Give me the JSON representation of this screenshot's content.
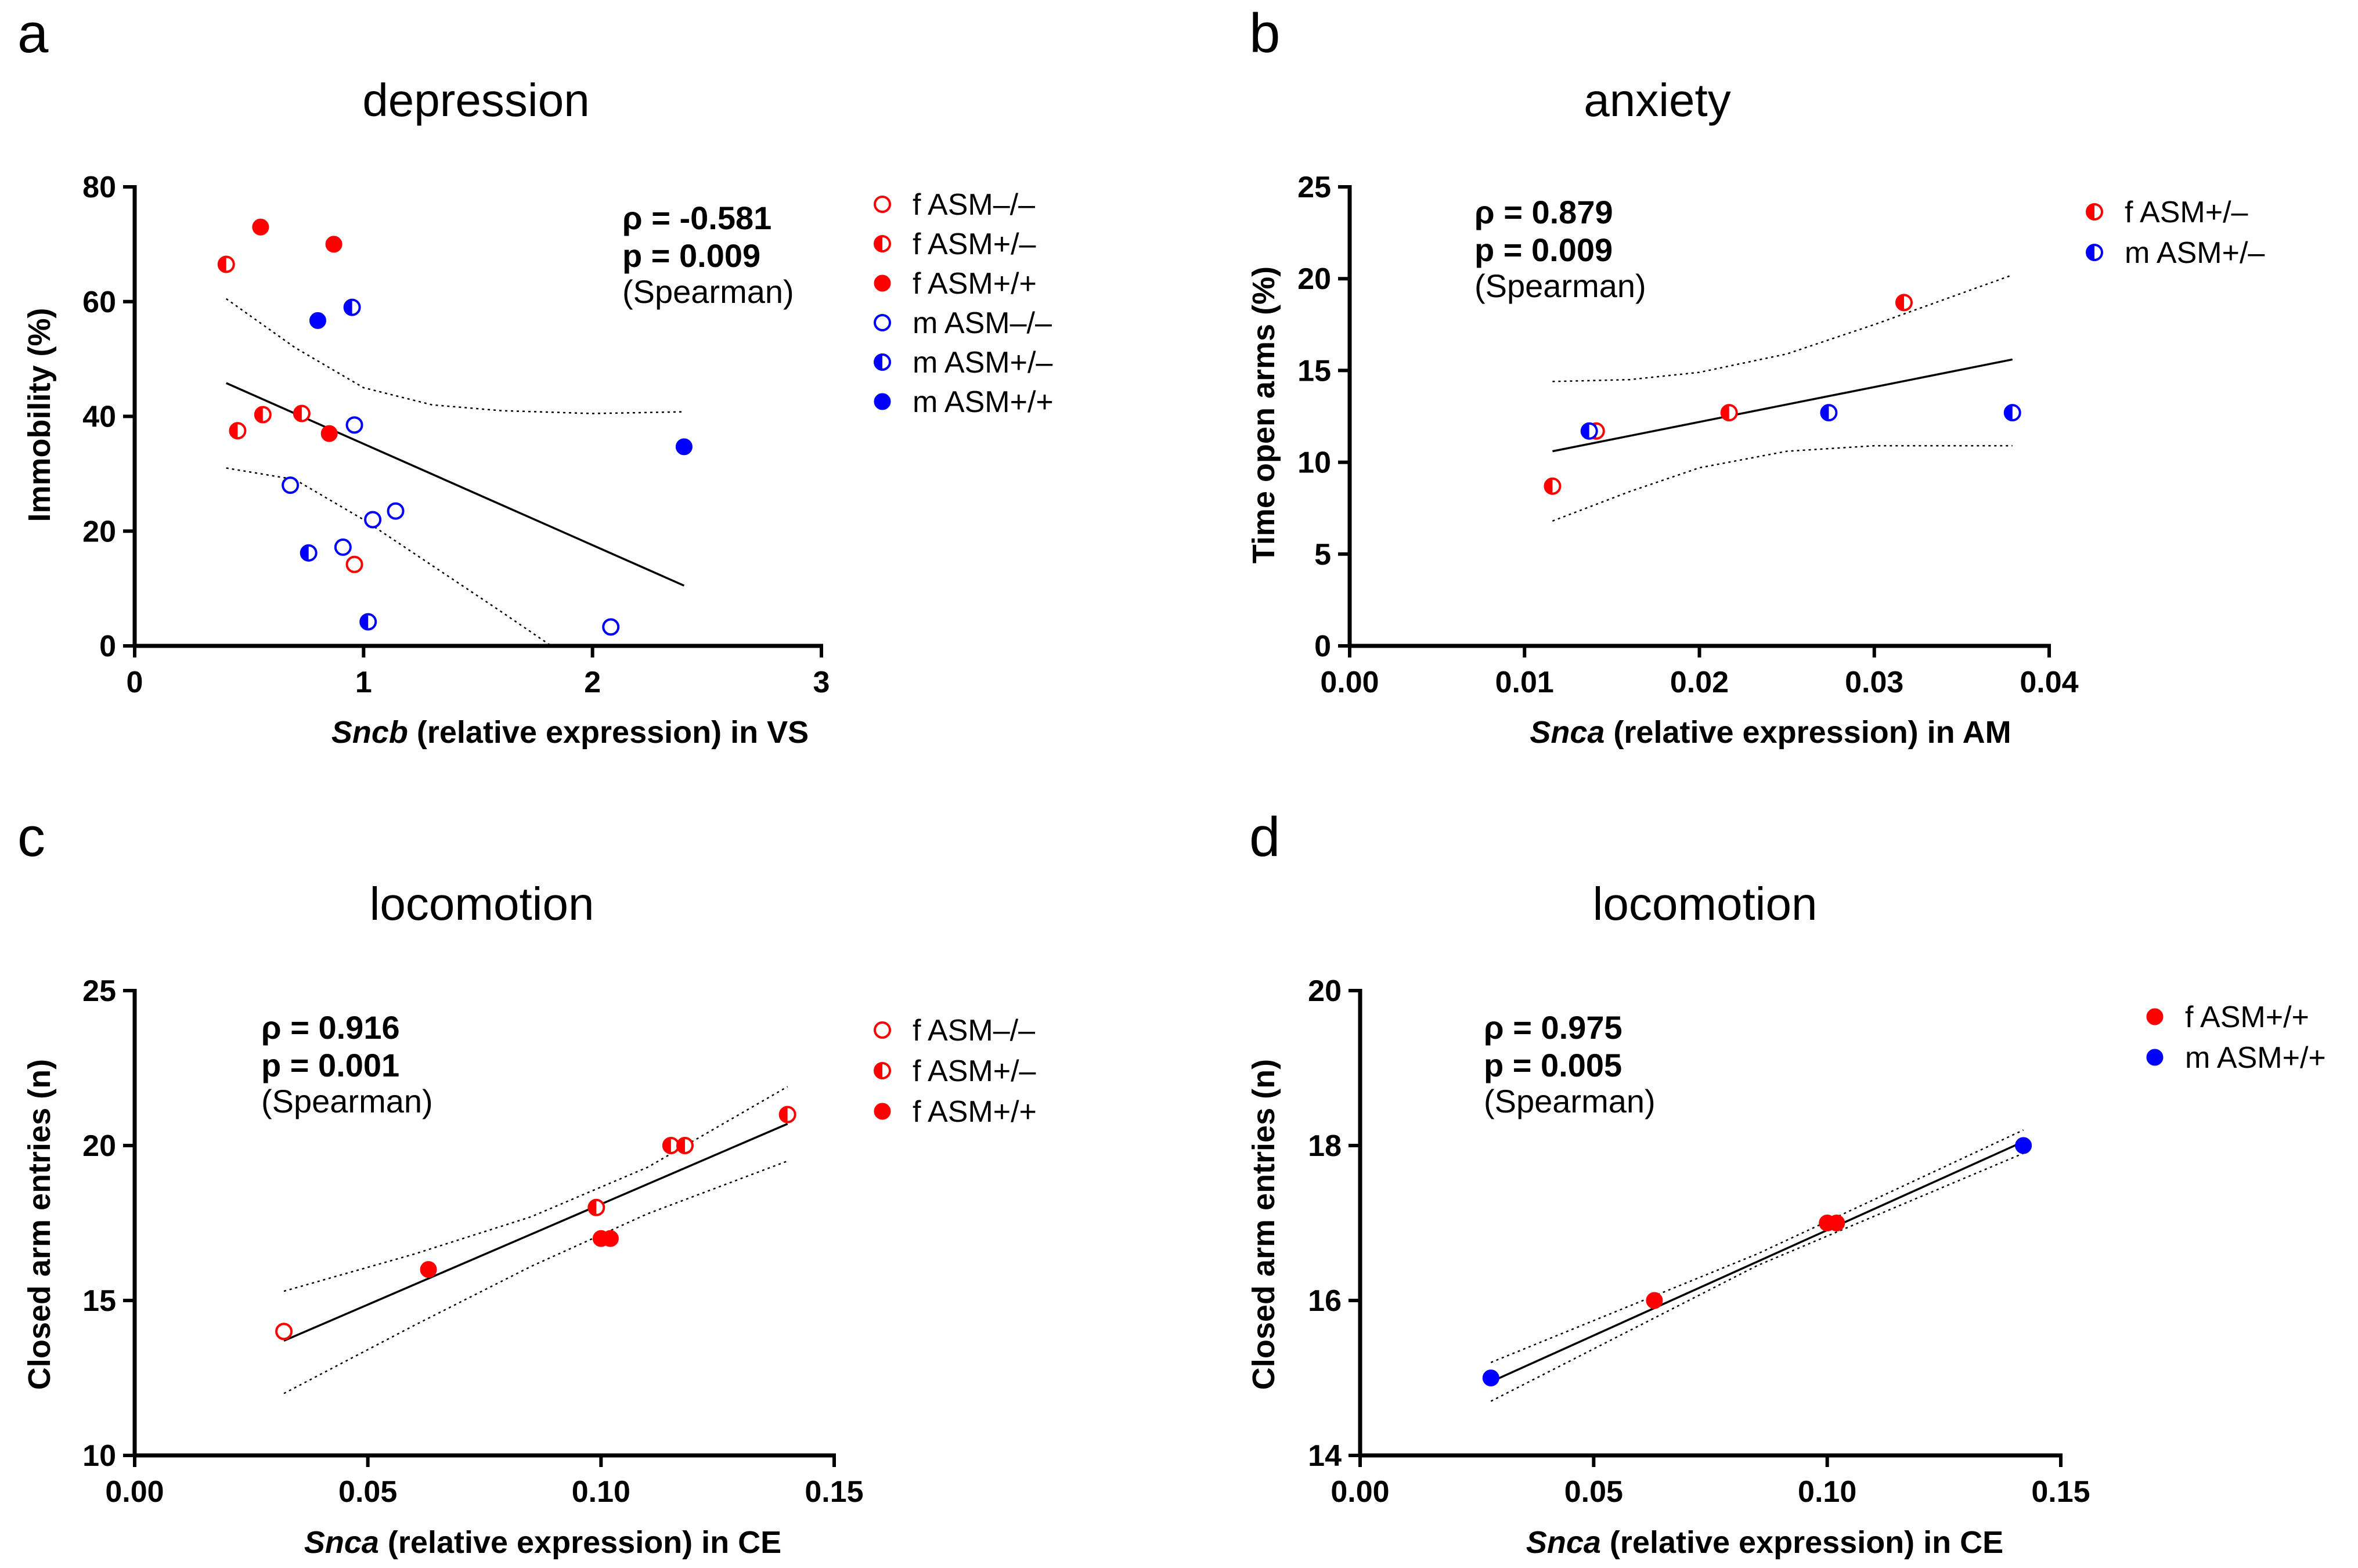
{
  "colors": {
    "f": "#ff0000",
    "m": "#0000ff",
    "axis": "#000000"
  },
  "chart_data": [
    {
      "panel": "a",
      "type": "scatter",
      "title": "depression",
      "xlabel_gene": "Sncb",
      "xlabel_rest": " (relative expression) in VS",
      "ylabel": "Immobility  (%)",
      "xlim": [
        0,
        3
      ],
      "ylim": [
        0,
        80
      ],
      "xticks": [
        0,
        1,
        2,
        3
      ],
      "xtick_labels": [
        "0",
        "1",
        "2",
        "3"
      ],
      "yticks": [
        0,
        20,
        40,
        60,
        80
      ],
      "ytick_labels": [
        "0",
        "20",
        "40",
        "60",
        "80"
      ],
      "stats": [
        "ρ = -0.581",
        "p = 0.009",
        "(Spearman)"
      ],
      "legend": [
        {
          "label": "f ASM–/–",
          "sex": "f",
          "fill": "open"
        },
        {
          "label": "f ASM+/–",
          "sex": "f",
          "fill": "half"
        },
        {
          "label": "f ASM+/+",
          "sex": "f",
          "fill": "full"
        },
        {
          "label": "m ASM–/–",
          "sex": "m",
          "fill": "open"
        },
        {
          "label": "m ASM+/–",
          "sex": "m",
          "fill": "half"
        },
        {
          "label": "m ASM+/+",
          "sex": "m",
          "fill": "full"
        }
      ],
      "points": [
        {
          "x": 0.4,
          "y": 66.5,
          "sex": "f",
          "fill": "half"
        },
        {
          "x": 0.55,
          "y": 73,
          "sex": "f",
          "fill": "full"
        },
        {
          "x": 0.87,
          "y": 70,
          "sex": "f",
          "fill": "full"
        },
        {
          "x": 0.45,
          "y": 37.5,
          "sex": "f",
          "fill": "half"
        },
        {
          "x": 0.56,
          "y": 40.3,
          "sex": "f",
          "fill": "half"
        },
        {
          "x": 0.73,
          "y": 40.5,
          "sex": "f",
          "fill": "half"
        },
        {
          "x": 0.85,
          "y": 37,
          "sex": "f",
          "fill": "full"
        },
        {
          "x": 0.96,
          "y": 14.2,
          "sex": "f",
          "fill": "open"
        },
        {
          "x": 0.8,
          "y": 56.7,
          "sex": "m",
          "fill": "full"
        },
        {
          "x": 0.95,
          "y": 59,
          "sex": "m",
          "fill": "half"
        },
        {
          "x": 0.96,
          "y": 38.5,
          "sex": "m",
          "fill": "open"
        },
        {
          "x": 0.68,
          "y": 28,
          "sex": "m",
          "fill": "open"
        },
        {
          "x": 0.76,
          "y": 16.2,
          "sex": "m",
          "fill": "half"
        },
        {
          "x": 0.91,
          "y": 17.2,
          "sex": "m",
          "fill": "open"
        },
        {
          "x": 1.04,
          "y": 22,
          "sex": "m",
          "fill": "open"
        },
        {
          "x": 1.14,
          "y": 23.5,
          "sex": "m",
          "fill": "open"
        },
        {
          "x": 1.02,
          "y": 4.2,
          "sex": "m",
          "fill": "half"
        },
        {
          "x": 2.08,
          "y": 3.3,
          "sex": "m",
          "fill": "open"
        },
        {
          "x": 2.4,
          "y": 34.7,
          "sex": "m",
          "fill": "full"
        }
      ],
      "regression": [
        [
          0.4,
          45.8
        ],
        [
          2.4,
          10.5
        ]
      ],
      "ci_upper": [
        [
          0.4,
          60.5
        ],
        [
          0.7,
          52
        ],
        [
          1.0,
          45
        ],
        [
          1.3,
          42
        ],
        [
          1.6,
          41
        ],
        [
          2.0,
          40.5
        ],
        [
          2.4,
          40.8
        ]
      ],
      "ci_lower": [
        [
          0.4,
          31
        ],
        [
          0.7,
          29
        ],
        [
          1.0,
          22
        ],
        [
          1.3,
          14
        ],
        [
          1.6,
          6
        ],
        [
          1.82,
          0
        ]
      ]
    },
    {
      "panel": "b",
      "type": "scatter",
      "title": "anxiety",
      "xlabel_gene": "Snca",
      "xlabel_rest": " (relative expression) in AM",
      "ylabel": "Time open arms (%)",
      "xlim": [
        0,
        0.04
      ],
      "ylim": [
        0,
        25
      ],
      "xticks": [
        0,
        0.01,
        0.02,
        0.03,
        0.04
      ],
      "xtick_labels": [
        "0.00",
        "0.01",
        "0.02",
        "0.03",
        "0.04"
      ],
      "yticks": [
        0,
        5,
        10,
        15,
        20,
        25
      ],
      "ytick_labels": [
        "0",
        "5",
        "10",
        "15",
        "20",
        "25"
      ],
      "stats": [
        "ρ = 0.879",
        "p = 0.009",
        "(Spearman)"
      ],
      "legend": [
        {
          "label": "f ASM+/–",
          "sex": "f",
          "fill": "half"
        },
        {
          "label": "m ASM+/–",
          "sex": "m",
          "fill": "half"
        }
      ],
      "points": [
        {
          "x": 0.0116,
          "y": 8.7,
          "sex": "f",
          "fill": "half"
        },
        {
          "x": 0.0141,
          "y": 11.7,
          "sex": "f",
          "fill": "half"
        },
        {
          "x": 0.0217,
          "y": 12.7,
          "sex": "f",
          "fill": "half"
        },
        {
          "x": 0.0317,
          "y": 18.7,
          "sex": "f",
          "fill": "half"
        },
        {
          "x": 0.0137,
          "y": 11.7,
          "sex": "m",
          "fill": "half"
        },
        {
          "x": 0.0274,
          "y": 12.7,
          "sex": "m",
          "fill": "half"
        },
        {
          "x": 0.0379,
          "y": 12.7,
          "sex": "m",
          "fill": "half"
        }
      ],
      "regression": [
        [
          0.0116,
          10.6
        ],
        [
          0.0379,
          15.6
        ]
      ],
      "ci_upper": [
        [
          0.0116,
          14.4
        ],
        [
          0.016,
          14.5
        ],
        [
          0.02,
          14.9
        ],
        [
          0.025,
          15.9
        ],
        [
          0.03,
          17.5
        ],
        [
          0.0379,
          20.2
        ]
      ],
      "ci_lower": [
        [
          0.0116,
          6.8
        ],
        [
          0.016,
          8.4
        ],
        [
          0.02,
          9.7
        ],
        [
          0.025,
          10.6
        ],
        [
          0.03,
          10.9
        ],
        [
          0.0379,
          10.9
        ]
      ]
    },
    {
      "panel": "c",
      "type": "scatter",
      "title": "locomotion",
      "xlabel_gene": "Snca",
      "xlabel_rest": " (relative expression) in CE",
      "ylabel": "Closed arm entries (n)",
      "xlim": [
        0,
        0.15
      ],
      "ylim": [
        10,
        25
      ],
      "xticks": [
        0,
        0.05,
        0.1,
        0.15
      ],
      "xtick_labels": [
        "0.00",
        "0.05",
        "0.10",
        "0.15"
      ],
      "yticks": [
        10,
        15,
        20,
        25
      ],
      "ytick_labels": [
        "10",
        "15",
        "20",
        "25"
      ],
      "stats": [
        "ρ = 0.916",
        "p = 0.001",
        "(Spearman)"
      ],
      "legend": [
        {
          "label": "f ASM–/–",
          "sex": "f",
          "fill": "open"
        },
        {
          "label": "f ASM+/–",
          "sex": "f",
          "fill": "half"
        },
        {
          "label": "f ASM+/+",
          "sex": "f",
          "fill": "full"
        }
      ],
      "points": [
        {
          "x": 0.032,
          "y": 14,
          "sex": "f",
          "fill": "open"
        },
        {
          "x": 0.063,
          "y": 16,
          "sex": "f",
          "fill": "full"
        },
        {
          "x": 0.099,
          "y": 18,
          "sex": "f",
          "fill": "half"
        },
        {
          "x": 0.1,
          "y": 17,
          "sex": "f",
          "fill": "full"
        },
        {
          "x": 0.102,
          "y": 17,
          "sex": "f",
          "fill": "full"
        },
        {
          "x": 0.115,
          "y": 20,
          "sex": "f",
          "fill": "half"
        },
        {
          "x": 0.118,
          "y": 20,
          "sex": "f",
          "fill": "half"
        },
        {
          "x": 0.14,
          "y": 21,
          "sex": "f",
          "fill": "half"
        }
      ],
      "regression": [
        [
          0.032,
          13.7
        ],
        [
          0.14,
          20.7
        ]
      ],
      "ci_upper": [
        [
          0.032,
          15.3
        ],
        [
          0.06,
          16.5
        ],
        [
          0.085,
          17.7
        ],
        [
          0.11,
          19.3
        ],
        [
          0.14,
          21.9
        ]
      ],
      "ci_lower": [
        [
          0.032,
          12.0
        ],
        [
          0.06,
          14.2
        ],
        [
          0.085,
          16.1
        ],
        [
          0.11,
          17.8
        ],
        [
          0.14,
          19.5
        ]
      ]
    },
    {
      "panel": "d",
      "type": "scatter",
      "title": "locomotion",
      "xlabel_gene": "Snca",
      "xlabel_rest": " (relative expression) in CE",
      "ylabel": "Closed arm entries (n)",
      "xlim": [
        0,
        0.15
      ],
      "ylim": [
        14,
        20
      ],
      "xticks": [
        0,
        0.05,
        0.1,
        0.15
      ],
      "xtick_labels": [
        "0.00",
        "0.05",
        "0.10",
        "0.15"
      ],
      "yticks": [
        14,
        16,
        18,
        20
      ],
      "ytick_labels": [
        "14",
        "16",
        "18",
        "20"
      ],
      "stats": [
        "ρ = 0.975",
        "p = 0.005",
        "(Spearman)"
      ],
      "legend": [
        {
          "label": "f ASM+/+",
          "sex": "f",
          "fill": "full"
        },
        {
          "label": "m ASM+/+",
          "sex": "m",
          "fill": "full"
        }
      ],
      "points": [
        {
          "x": 0.028,
          "y": 15,
          "sex": "m",
          "fill": "full"
        },
        {
          "x": 0.063,
          "y": 16,
          "sex": "f",
          "fill": "full"
        },
        {
          "x": 0.1,
          "y": 17,
          "sex": "f",
          "fill": "full"
        },
        {
          "x": 0.102,
          "y": 17,
          "sex": "f",
          "fill": "full"
        },
        {
          "x": 0.142,
          "y": 18,
          "sex": "m",
          "fill": "full"
        }
      ],
      "regression": [
        [
          0.028,
          14.95
        ],
        [
          0.142,
          18.05
        ]
      ],
      "ci_upper": [
        [
          0.028,
          15.2
        ],
        [
          0.085,
          16.6
        ],
        [
          0.142,
          18.2
        ]
      ],
      "ci_lower": [
        [
          0.028,
          14.7
        ],
        [
          0.085,
          16.45
        ],
        [
          0.142,
          17.9
        ]
      ]
    }
  ]
}
